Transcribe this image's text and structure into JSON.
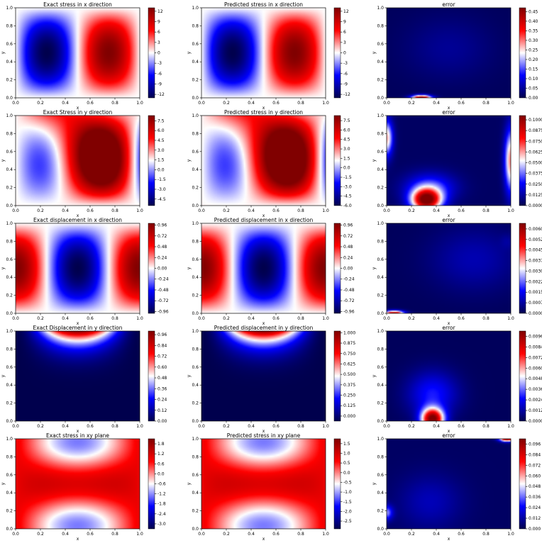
{
  "figure": {
    "cmap_seismic": [
      "#00004d",
      "#0000a6",
      "#0000ff",
      "#8080ff",
      "#ffffff",
      "#ff8080",
      "#ff0000",
      "#c00000",
      "#800000"
    ],
    "cmap_error": [
      "#00004d",
      "#0000a6",
      "#0000ff",
      "#8080ff",
      "#ffffff",
      "#ff8080",
      "#ff0000",
      "#c00000",
      "#800000"
    ]
  },
  "chart_data": [
    {
      "type": "heatmap",
      "title": "Exact stress in x direction",
      "xlabel": "x",
      "ylabel": "y",
      "xlim": [
        0,
        1
      ],
      "ylim": [
        0,
        1
      ],
      "x_ticks": [
        "0.0",
        "0.2",
        "0.4",
        "0.6",
        "0.8",
        "1.0"
      ],
      "y_ticks": [
        "0.0",
        "0.2",
        "0.4",
        "0.6",
        "0.8",
        "1.0"
      ],
      "colorbar_ticks": [
        "12",
        "9",
        "6",
        "3",
        "0",
        "-3",
        "-6",
        "-9",
        "-12"
      ],
      "colorbar_range": [
        -13,
        13
      ],
      "field": "sxx"
    },
    {
      "type": "heatmap",
      "title": "Predicted stress in x direction",
      "xlabel": "x",
      "ylabel": "y",
      "xlim": [
        0,
        1
      ],
      "ylim": [
        0,
        1
      ],
      "x_ticks": [
        "0.0",
        "0.2",
        "0.4",
        "0.6",
        "0.8",
        "1.0"
      ],
      "y_ticks": [
        "0.0",
        "0.2",
        "0.4",
        "0.6",
        "0.8",
        "1.0"
      ],
      "colorbar_ticks": [
        "12",
        "9",
        "6",
        "3",
        "0",
        "-3",
        "-6",
        "-9",
        "-12"
      ],
      "colorbar_range": [
        -13,
        13
      ],
      "field": "sxx"
    },
    {
      "type": "heatmap",
      "title": "error",
      "xlabel": "x",
      "ylabel": "y",
      "xlim": [
        0,
        1
      ],
      "ylim": [
        0,
        1
      ],
      "x_ticks": [
        "0.0",
        "0.2",
        "0.4",
        "0.6",
        "0.8",
        "1.0"
      ],
      "y_ticks": [
        "0.0",
        "0.2",
        "0.4",
        "0.6",
        "0.8",
        "1.0"
      ],
      "colorbar_ticks": [
        "0.45",
        "0.40",
        "0.35",
        "0.30",
        "0.25",
        "0.20",
        "0.15",
        "0.10",
        "0.05",
        "0.00"
      ],
      "colorbar_range": [
        0,
        0.47
      ],
      "field": "err_sxx"
    },
    {
      "type": "heatmap",
      "title": "Exact Stress in y direction",
      "xlabel": "x",
      "ylabel": "y",
      "xlim": [
        0,
        1
      ],
      "ylim": [
        0,
        1
      ],
      "x_ticks": [
        "0.0",
        "0.2",
        "0.4",
        "0.6",
        "0.8",
        "1.0"
      ],
      "y_ticks": [
        "0.0",
        "0.2",
        "0.4",
        "0.6",
        "0.8",
        "1.0"
      ],
      "colorbar_ticks": [
        "7.5",
        "6.0",
        "4.5",
        "3.0",
        "1.5",
        "0.0",
        "-1.5",
        "-3.0",
        "-4.5"
      ],
      "colorbar_range": [
        -5.5,
        8.3
      ],
      "field": "syy"
    },
    {
      "type": "heatmap",
      "title": "Predicted stress in y direction",
      "xlabel": "x",
      "ylabel": "y",
      "xlim": [
        0,
        1
      ],
      "ylim": [
        0,
        1
      ],
      "x_ticks": [
        "0.0",
        "0.2",
        "0.4",
        "0.6",
        "0.8",
        "1.0"
      ],
      "y_ticks": [
        "0.0",
        "0.2",
        "0.4",
        "0.6",
        "0.8",
        "1.0"
      ],
      "colorbar_ticks": [
        "7.5",
        "6.0",
        "4.5",
        "3.0",
        "1.5",
        "0.0",
        "-1.5",
        "-3.0",
        "-4.5",
        "-6.0"
      ],
      "colorbar_range": [
        -6.0,
        8.3
      ],
      "field": "syy"
    },
    {
      "type": "heatmap",
      "title": "error",
      "xlabel": "x",
      "ylabel": "y",
      "xlim": [
        0,
        1
      ],
      "ylim": [
        0,
        1
      ],
      "x_ticks": [
        "0.0",
        "0.2",
        "0.4",
        "0.6",
        "0.8",
        "1.0"
      ],
      "y_ticks": [
        "0.0",
        "0.2",
        "0.4",
        "0.6",
        "0.8",
        "1.0"
      ],
      "colorbar_ticks": [
        "0.1000",
        "0.0875",
        "0.0750",
        "0.0625",
        "0.0500",
        "0.0375",
        "0.0250",
        "0.0125",
        "0.0000"
      ],
      "colorbar_range": [
        0,
        0.105
      ],
      "field": "err_syy"
    },
    {
      "type": "heatmap",
      "title": "Exact displacement in x direction",
      "xlabel": "x",
      "ylabel": "y",
      "xlim": [
        0,
        1
      ],
      "ylim": [
        0,
        1
      ],
      "x_ticks": [
        "0.0",
        "0.2",
        "0.4",
        "0.6",
        "0.8",
        "1.0"
      ],
      "y_ticks": [
        "0.0",
        "0.2",
        "0.4",
        "0.6",
        "0.8",
        "1.0"
      ],
      "colorbar_ticks": [
        "0.96",
        "0.72",
        "0.48",
        "0.24",
        "0.00",
        "-0.24",
        "-0.48",
        "-0.72",
        "-0.96"
      ],
      "colorbar_range": [
        -1.0,
        1.0
      ],
      "field": "ux"
    },
    {
      "type": "heatmap",
      "title": "Predicted displacement in x direction",
      "xlabel": "x",
      "ylabel": "y",
      "xlim": [
        0,
        1
      ],
      "ylim": [
        0,
        1
      ],
      "x_ticks": [
        "0.0",
        "0.2",
        "0.4",
        "0.6",
        "0.8",
        "1.0"
      ],
      "y_ticks": [
        "0.0",
        "0.2",
        "0.4",
        "0.6",
        "0.8",
        "1.0"
      ],
      "colorbar_ticks": [
        "0.96",
        "0.72",
        "0.48",
        "0.24",
        "0.00",
        "-0.24",
        "-0.48",
        "-0.72",
        "-0.96"
      ],
      "colorbar_range": [
        -1.0,
        1.0
      ],
      "field": "ux"
    },
    {
      "type": "heatmap",
      "title": "error",
      "xlabel": "x",
      "ylabel": "y",
      "xlim": [
        0,
        1
      ],
      "ylim": [
        0,
        1
      ],
      "x_ticks": [
        "0.0",
        "0.2",
        "0.4",
        "0.6",
        "0.8",
        "1.0"
      ],
      "y_ticks": [
        "0.0",
        "0.2",
        "0.4",
        "0.6",
        "0.8",
        "1.0"
      ],
      "colorbar_ticks": [
        "0.00600",
        "0.00525",
        "0.00450",
        "0.00375",
        "0.00300",
        "0.00225",
        "0.00150",
        "0.00075",
        "0.00000"
      ],
      "colorbar_range": [
        0,
        0.0064
      ],
      "field": "err_ux"
    },
    {
      "type": "heatmap",
      "title": "Exact Displacement in y direction",
      "xlabel": "x",
      "ylabel": "y",
      "xlim": [
        0,
        1
      ],
      "ylim": [
        0,
        1
      ],
      "x_ticks": [
        "0.0",
        "0.2",
        "0.4",
        "0.6",
        "0.8",
        "1.0"
      ],
      "y_ticks": [
        "0.0",
        "0.2",
        "0.4",
        "0.6",
        "0.8",
        "1.0"
      ],
      "colorbar_ticks": [
        "0.96",
        "0.84",
        "0.72",
        "0.60",
        "0.48",
        "0.36",
        "0.24",
        "0.12",
        "0.00"
      ],
      "colorbar_range": [
        0,
        1.0
      ],
      "field": "uy"
    },
    {
      "type": "heatmap",
      "title": "Predicted displacement in y direction",
      "xlabel": "x",
      "ylabel": "y",
      "xlim": [
        0,
        1
      ],
      "ylim": [
        0,
        1
      ],
      "x_ticks": [
        "0.0",
        "0.2",
        "0.4",
        "0.6",
        "0.8",
        "1.0"
      ],
      "y_ticks": [
        "0.0",
        "0.2",
        "0.4",
        "0.6",
        "0.8",
        "1.0"
      ],
      "colorbar_ticks": [
        "1.000",
        "0.875",
        "0.750",
        "0.625",
        "0.500",
        "0.375",
        "0.250",
        "0.125",
        "0.000"
      ],
      "colorbar_range": [
        -0.06,
        1.02
      ],
      "field": "uy"
    },
    {
      "type": "heatmap",
      "title": "error",
      "xlabel": "x",
      "ylabel": "y",
      "xlim": [
        0,
        1
      ],
      "ylim": [
        0,
        1
      ],
      "x_ticks": [
        "0.0",
        "0.2",
        "0.4",
        "0.6",
        "0.8",
        "1.0"
      ],
      "y_ticks": [
        "0.0",
        "0.2",
        "0.4",
        "0.6",
        "0.8",
        "1.0"
      ],
      "colorbar_ticks": [
        "0.0096",
        "0.0084",
        "0.0072",
        "0.0060",
        "0.0048",
        "0.0036",
        "0.0024",
        "0.0012",
        "0.0000"
      ],
      "colorbar_range": [
        0,
        0.0102
      ],
      "field": "err_uy"
    },
    {
      "type": "heatmap",
      "title": "Exact stress in xy plane",
      "xlabel": "x",
      "ylabel": "y",
      "xlim": [
        0,
        1
      ],
      "ylim": [
        0,
        1
      ],
      "x_ticks": [
        "0.0",
        "0.2",
        "0.4",
        "0.6",
        "0.8",
        "1.0"
      ],
      "y_ticks": [
        "0.0",
        "0.2",
        "0.4",
        "0.6",
        "0.8",
        "1.0"
      ],
      "colorbar_ticks": [
        "1.8",
        "1.2",
        "0.6",
        "0.0",
        "-0.6",
        "-1.2",
        "-1.8",
        "-2.4",
        "-3.0"
      ],
      "colorbar_range": [
        -3.3,
        2.1
      ],
      "field": "sxy"
    },
    {
      "type": "heatmap",
      "title": "Predicted stress in xy plane",
      "xlabel": "x",
      "ylabel": "y",
      "xlim": [
        0,
        1
      ],
      "ylim": [
        0,
        1
      ],
      "x_ticks": [
        "0.0",
        "0.2",
        "0.4",
        "0.6",
        "0.8",
        "1.0"
      ],
      "y_ticks": [
        "0.0",
        "0.2",
        "0.4",
        "0.6",
        "0.8",
        "1.0"
      ],
      "colorbar_ticks": [
        "1.5",
        "1.0",
        "0.5",
        "0.0",
        "-0.5",
        "-1.0",
        "-1.5",
        "-2.0",
        "-2.5"
      ],
      "colorbar_range": [
        -2.9,
        1.75
      ],
      "field": "sxy"
    },
    {
      "type": "heatmap",
      "title": "error",
      "xlabel": "x",
      "ylabel": "y",
      "xlim": [
        0,
        1
      ],
      "ylim": [
        0,
        1
      ],
      "x_ticks": [
        "0.0",
        "0.2",
        "0.4",
        "0.6",
        "0.8",
        "1.0"
      ],
      "y_ticks": [
        "0.0",
        "0.2",
        "0.4",
        "0.6",
        "0.8",
        "1.0"
      ],
      "colorbar_ticks": [
        "0.096",
        "0.084",
        "0.072",
        "0.060",
        "0.048",
        "0.036",
        "0.024",
        "0.012",
        "0.000"
      ],
      "colorbar_range": [
        0,
        0.102
      ],
      "field": "err_sxy"
    }
  ]
}
